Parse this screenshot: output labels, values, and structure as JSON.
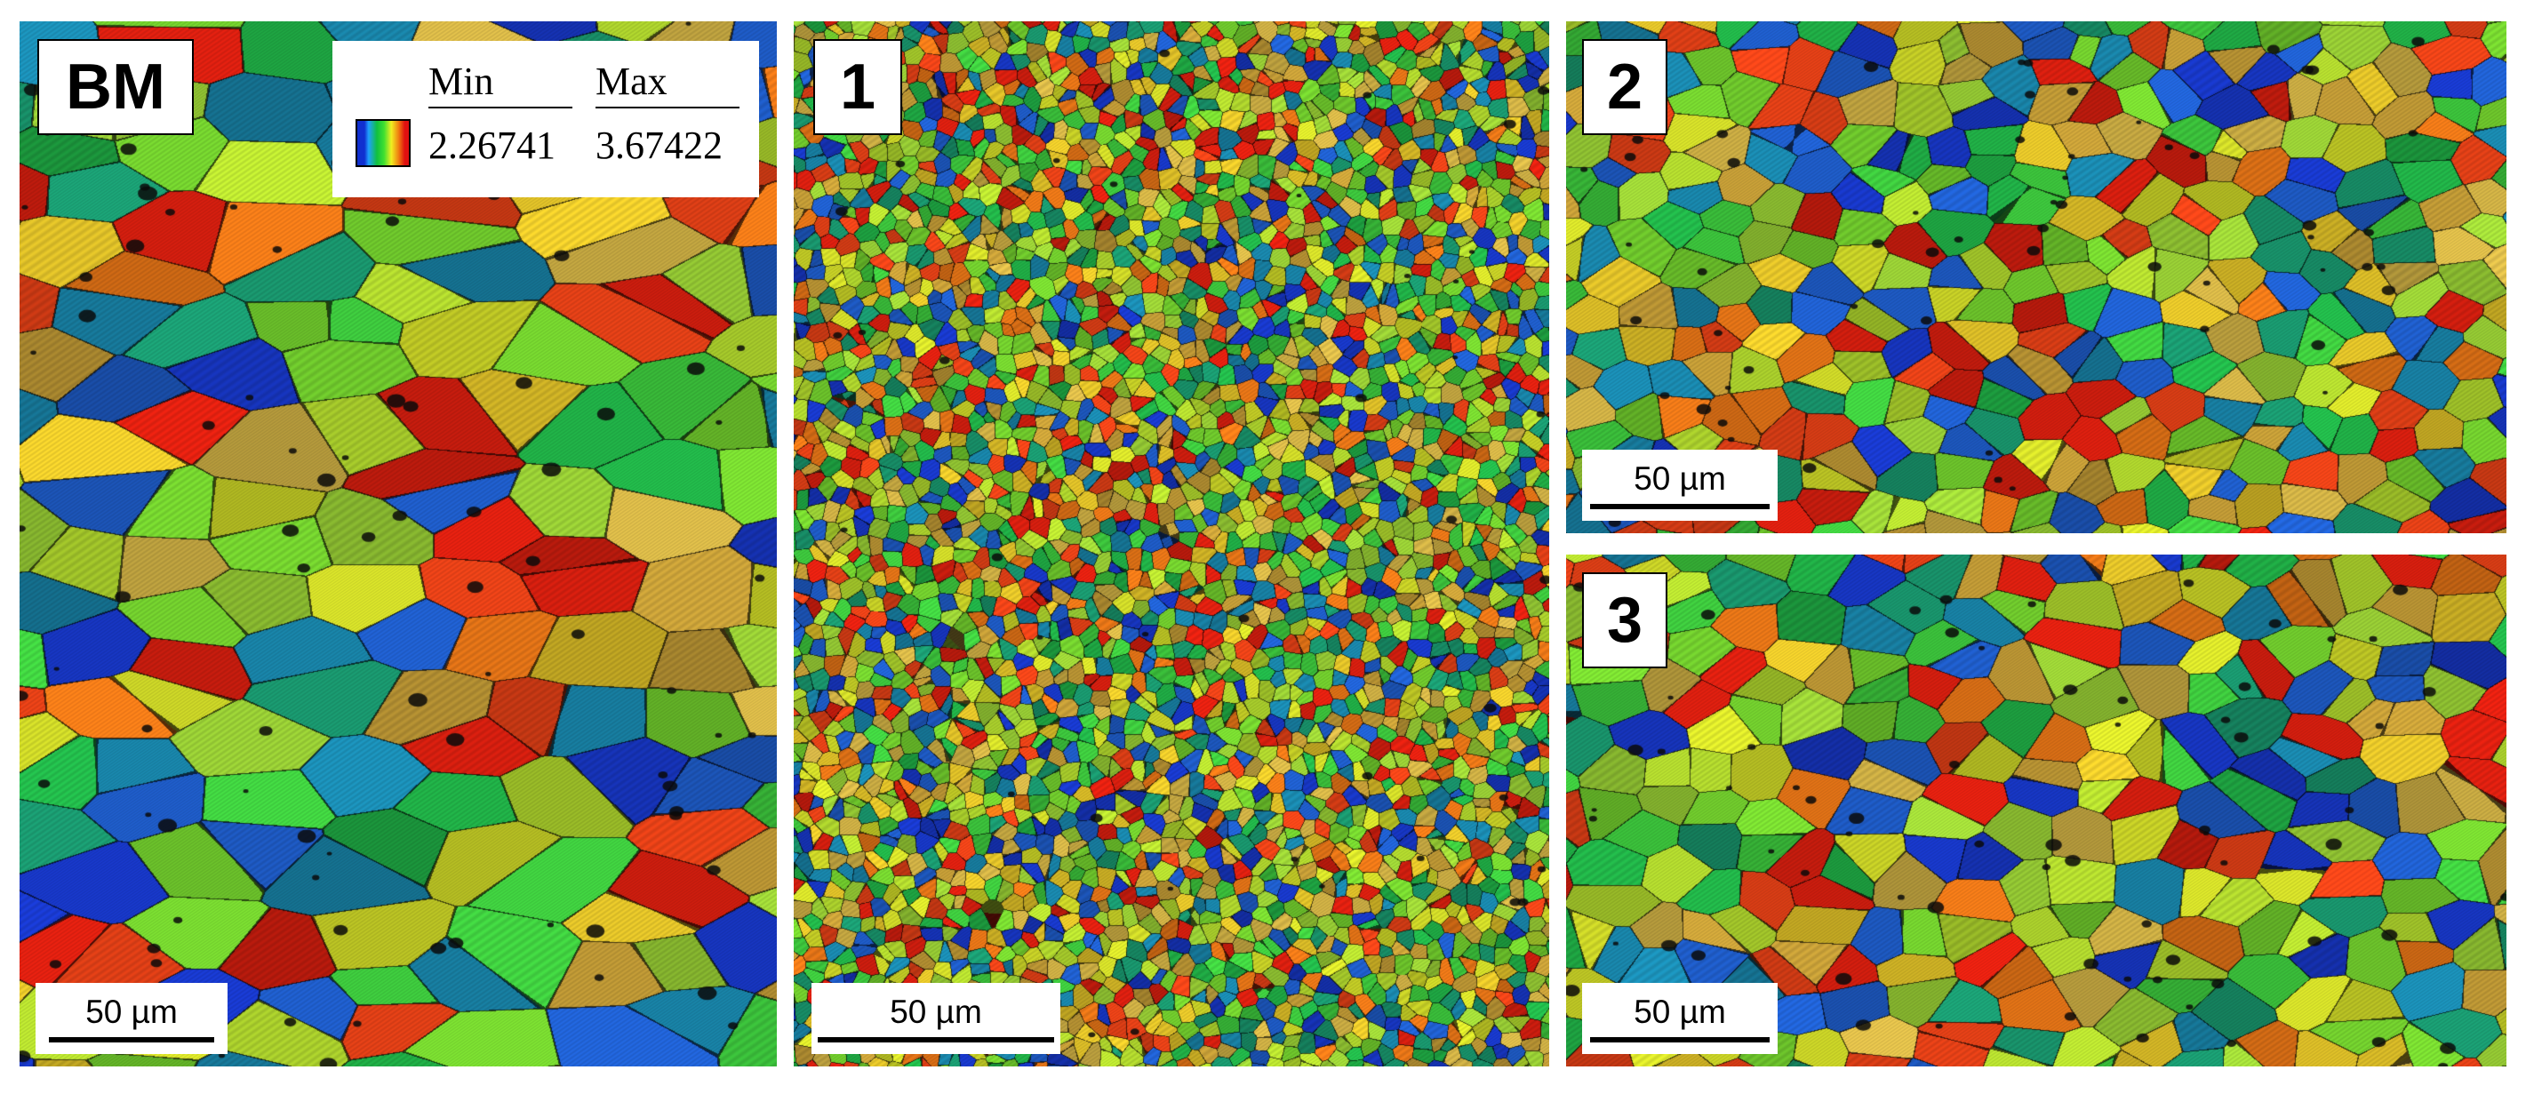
{
  "panels": [
    {
      "id": "bm",
      "label": "BM",
      "scale_bar": "50 µm"
    },
    {
      "id": "1",
      "label": "1",
      "scale_bar": "50 µm"
    },
    {
      "id": "2",
      "label": "2",
      "scale_bar": "50 µm"
    },
    {
      "id": "3",
      "label": "3",
      "scale_bar": "50 µm"
    }
  ],
  "legend": {
    "min_header": "Min",
    "max_header": "Max",
    "min_value": "2.26741",
    "max_value": "3.67422",
    "gradient_colors": [
      "#1030d0",
      "#20a0ff",
      "#10c040",
      "#40e030",
      "#f0f020",
      "#f08010",
      "#e01010"
    ]
  },
  "grain_colors": [
    "#e02010",
    "#f04418",
    "#f07a18",
    "#e8c82a",
    "#d8e22a",
    "#b8e030",
    "#78d830",
    "#40d040",
    "#22b84a",
    "#1a9a70",
    "#1a8ab0",
    "#2060d0",
    "#1838c8",
    "#c8a038",
    "#d8b848",
    "#a0d838"
  ]
}
